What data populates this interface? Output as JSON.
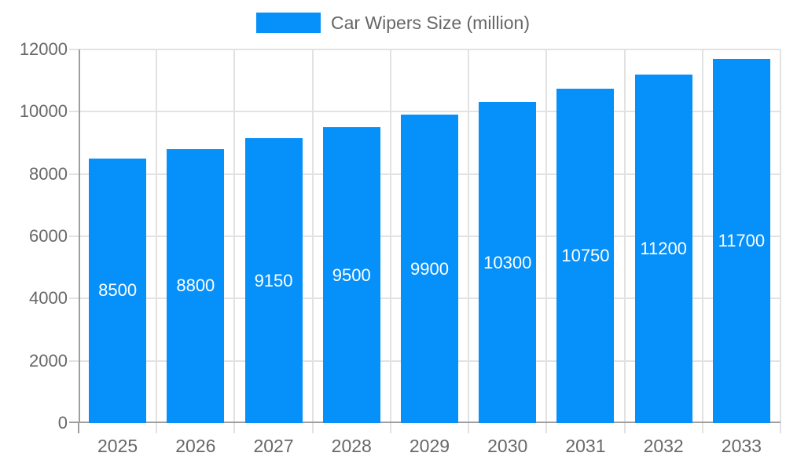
{
  "chart_data": {
    "type": "bar",
    "title": "Car Wipers Size (million)",
    "legend_position": "top",
    "categories": [
      "2025",
      "2026",
      "2027",
      "2028",
      "2029",
      "2030",
      "2031",
      "2032",
      "2033"
    ],
    "series": [
      {
        "name": "Car Wipers Size (million)",
        "values": [
          8500,
          8800,
          9150,
          9500,
          9900,
          10300,
          10750,
          11200,
          11700
        ]
      }
    ],
    "values": [
      8500,
      8800,
      9150,
      9500,
      9900,
      10300,
      10750,
      11200,
      11700
    ],
    "value_labels": [
      "8500",
      "8800",
      "9150",
      "9500",
      "9900",
      "10300",
      "10750",
      "11200",
      "11700"
    ],
    "value_label_position": "inside-center",
    "xlabel": "",
    "ylabel": "",
    "ylim": [
      0,
      12000
    ],
    "yticks": [
      0,
      2000,
      4000,
      6000,
      8000,
      10000,
      12000
    ],
    "ytick_labels": [
      "0",
      "2000",
      "4000",
      "6000",
      "8000",
      "10000",
      "12000"
    ],
    "grid": true,
    "colors": {
      "bar": "#0690fa",
      "axis_line": "#9e9e9e",
      "grid_line": "#e2e2e2",
      "axis_text": "#686868",
      "legend_text": "#666666",
      "value_label": "#ffffff",
      "background": "#ffffff"
    }
  }
}
